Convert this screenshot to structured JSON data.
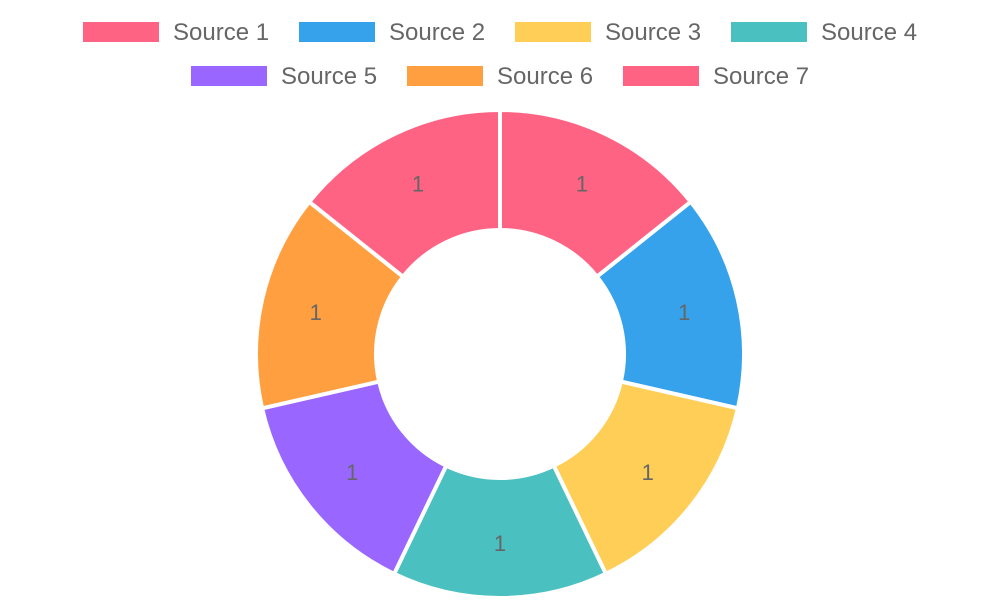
{
  "chart_data": {
    "type": "doughnut",
    "categories": [
      "Source 1",
      "Source 2",
      "Source 3",
      "Source 4",
      "Source 5",
      "Source 6",
      "Source 7"
    ],
    "values": [
      1,
      1,
      1,
      1,
      1,
      1,
      1
    ],
    "data_labels": [
      "1",
      "1",
      "1",
      "1",
      "1",
      "1",
      "1"
    ],
    "colors": [
      "#FF6384",
      "#36A2EB",
      "#FFCE56",
      "#4BC0C0",
      "#9966FF",
      "#FF9F40",
      "#FF6384"
    ],
    "title": "",
    "legend_position": "top",
    "border_color": "#ffffff"
  }
}
